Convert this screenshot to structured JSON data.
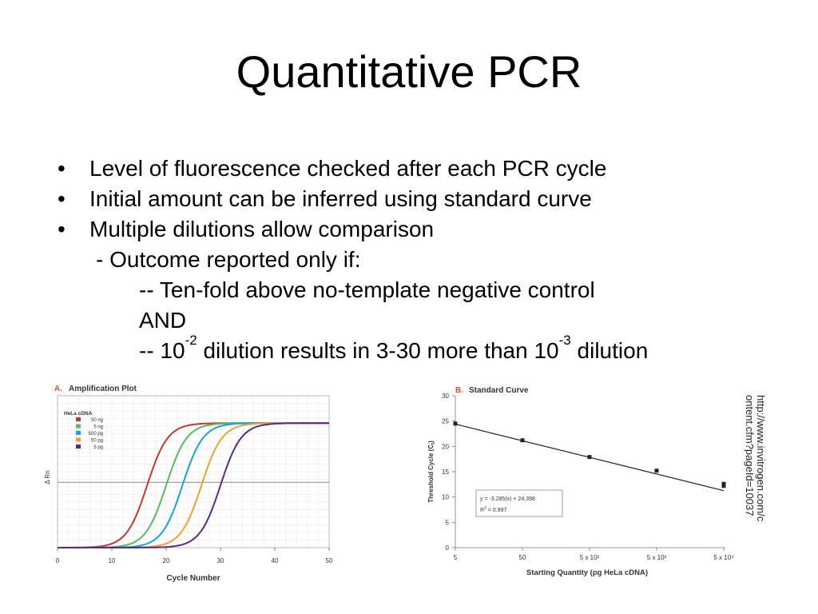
{
  "slide": {
    "title": "Quantitative PCR",
    "bullets": [
      "Level of fluorescence checked after each PCR cycle",
      "Initial amount can be inferred using standard curve",
      "Multiple dilutions allow comparison"
    ],
    "sub1": "- Outcome reported only if:",
    "sub2_line1": "-- Ten-fold above no-template negative control",
    "sub2_and": "AND",
    "sub2_line3": {
      "part1": "-- 10",
      "exp1": "-2",
      "part2": " dilution results in 3-30 more than 10",
      "exp2": "-3",
      "part3": " dilution"
    },
    "credit_line1": "http://www.invitrogen.com/c",
    "credit_line2": "ontent.cfm?pageId=10037"
  },
  "chart_data": [
    {
      "type": "line",
      "panel_label": "A.",
      "title": "Amplification Plot",
      "xlabel": "Cycle Number",
      "ylabel": "Δ Rn",
      "xlim": [
        0,
        50
      ],
      "xticks": [
        0,
        10,
        20,
        30,
        40,
        50
      ],
      "threshold": 0.43,
      "legend_title": "HeLa cDNA",
      "legend_position": "top-left",
      "series": [
        {
          "name": "50 ng",
          "color": "#c0392b",
          "midpoint": 16.5
        },
        {
          "name": "5 ng",
          "color": "#5cb85c",
          "midpoint": 20
        },
        {
          "name": "500 pg",
          "color": "#17a2d8",
          "midpoint": 23
        },
        {
          "name": "50 pg",
          "color": "#f0a030",
          "midpoint": 26.5
        },
        {
          "name": "5 pg",
          "color": "#5b2a86",
          "midpoint": 30
        }
      ]
    },
    {
      "type": "scatter",
      "panel_label": "B.",
      "title": "Standard Curve",
      "xlabel": "Starting Quantity (pg HeLa cDNA)",
      "ylabel": "Threshold Cycle (C",
      "ylabel_sub": "t",
      "ylabel_end": ")",
      "ylim": [
        0,
        30
      ],
      "yticks": [
        "0",
        "5",
        "10",
        "15",
        "20",
        "25",
        "30"
      ],
      "xticks": [
        "5",
        "50",
        "5 x 10²",
        "5 x 10³",
        "5 x 10⁴"
      ],
      "x_scale": "log",
      "points": [
        {
          "x": 5,
          "y": 24.5
        },
        {
          "x": 50,
          "y": 21.2
        },
        {
          "x": 500,
          "y": 17.9
        },
        {
          "x": 5000,
          "y": 15.2
        },
        {
          "x": 50000,
          "y": 12.6
        },
        {
          "x": 50000,
          "y": 12.2
        }
      ],
      "fit": {
        "slope": -3.285,
        "intercept": 24.398
      },
      "equation": "y = -3.285(x) + 24.398",
      "r2_label": "R",
      "r2_exp": "2",
      "r2_value": " = 0.997",
      "grid": false
    }
  ]
}
